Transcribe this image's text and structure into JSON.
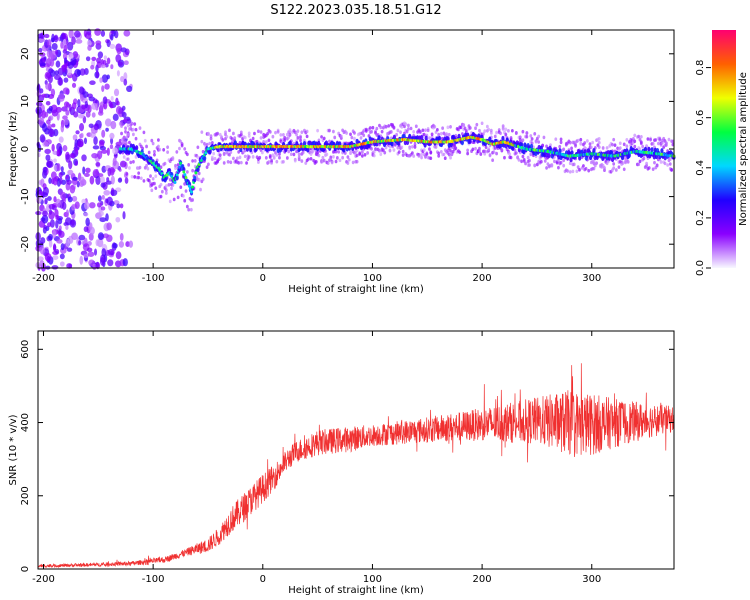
{
  "title": "S122.2023.035.18.51.G12",
  "chart_data": [
    {
      "type": "heatmap",
      "xlabel": "Height of straight line (km)",
      "ylabel": "Frequency (Hz)",
      "xlim": [
        -205,
        375
      ],
      "ylim": [
        -25,
        25
      ],
      "x_ticks": [
        "-200",
        "-100",
        "0",
        "100",
        "200",
        "300"
      ],
      "y_ticks": [
        "-20",
        "-10",
        "0",
        "10",
        "20"
      ],
      "colorbar": {
        "label": "Normalized spectral amplitude",
        "range": [
          0,
          0.95
        ],
        "ticks": [
          "0.0",
          "0.2",
          "0.4",
          "0.6",
          "0.8"
        ],
        "colors": [
          "#f8f8ff",
          "#8a00ff",
          "#2000ff",
          "#00d8ff",
          "#00ff40",
          "#f0ff00",
          "#ff6000",
          "#ff0070"
        ]
      },
      "ridge": {
        "x": [
          -130,
          -120,
          -110,
          -100,
          -95,
          -90,
          -85,
          -80,
          -75,
          -70,
          -65,
          -60,
          -55,
          -50,
          -40,
          -20,
          0,
          20,
          50,
          80,
          100,
          130,
          150,
          170,
          190,
          200,
          210,
          220,
          240,
          260,
          280,
          300,
          320,
          340,
          360,
          375
        ],
        "y": [
          0,
          0,
          -1,
          -3,
          -4,
          -6,
          -5,
          -7,
          -3,
          -6,
          -9,
          -4,
          -2,
          0,
          0.5,
          0.5,
          0.5,
          0.5,
          0.5,
          0.5,
          1.5,
          2,
          1.5,
          1.5,
          2.5,
          2,
          1,
          1.5,
          0,
          -0.5,
          -1.5,
          -1,
          -1.5,
          -0.5,
          -1,
          -1.5
        ]
      },
      "noise_region": {
        "x_start": -205,
        "x_end": -120,
        "y_range": [
          -25,
          25
        ]
      }
    },
    {
      "type": "line",
      "xlabel": "Height of straight line (km)",
      "ylabel": "SNR (10 * v/v)",
      "xlim": [
        -205,
        375
      ],
      "ylim": [
        0,
        650
      ],
      "x_ticks": [
        "-200",
        "-100",
        "0",
        "100",
        "200",
        "300"
      ],
      "y_ticks": [
        "0",
        "200",
        "400",
        "600"
      ],
      "color": "#f03030",
      "trend": {
        "x": [
          -205,
          -150,
          -120,
          -90,
          -70,
          -50,
          -40,
          -30,
          -20,
          -10,
          0,
          10,
          20,
          30,
          50,
          80,
          100,
          150,
          200,
          250,
          280,
          300,
          330,
          375
        ],
        "y": [
          8,
          12,
          15,
          25,
          45,
          65,
          90,
          130,
          160,
          190,
          220,
          250,
          290,
          320,
          345,
          355,
          365,
          380,
          395,
          405,
          400,
          395,
          400,
          410
        ],
        "noise": [
          4,
          5,
          6,
          8,
          10,
          20,
          25,
          35,
          40,
          40,
          40,
          35,
          30,
          30,
          35,
          35,
          30,
          35,
          45,
          65,
          90,
          85,
          60,
          35
        ]
      }
    }
  ]
}
